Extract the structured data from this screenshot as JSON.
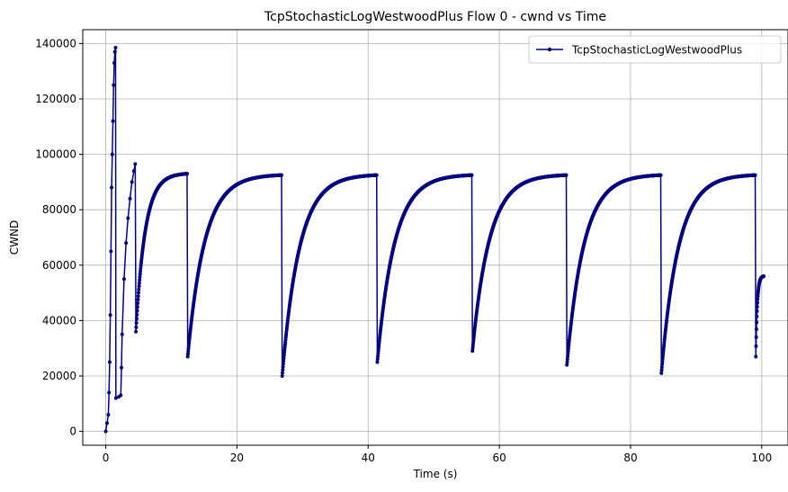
{
  "chart_data": {
    "type": "line",
    "title": "TcpStochasticLogWestwoodPlus Flow 0 - cwnd vs Time",
    "xlabel": "Time (s)",
    "ylabel": "CWND",
    "xlim": [
      -3.5,
      104
    ],
    "ylim": [
      -5000,
      145000
    ],
    "xticks": [
      0,
      20,
      40,
      60,
      80,
      100
    ],
    "yticks": [
      0,
      20000,
      40000,
      60000,
      80000,
      100000,
      120000,
      140000
    ],
    "grid": true,
    "legend": {
      "position": "top-right",
      "entries": [
        "TcpStochasticLogWestwoodPlus"
      ]
    },
    "colors": {
      "series": "#000080",
      "grid": "#b0b0b0"
    },
    "series": [
      {
        "name": "TcpStochasticLogWestwoodPlus",
        "startup_points": [
          [
            0.0,
            0
          ],
          [
            0.2,
            3000
          ],
          [
            0.4,
            6000
          ],
          [
            0.5,
            14000
          ],
          [
            0.6,
            25000
          ],
          [
            0.7,
            42000
          ],
          [
            0.8,
            65000
          ],
          [
            0.9,
            88000
          ],
          [
            1.0,
            100000
          ],
          [
            1.1,
            112000
          ],
          [
            1.2,
            125000
          ],
          [
            1.3,
            133000
          ],
          [
            1.4,
            137000
          ],
          [
            1.5,
            138500
          ],
          [
            1.55,
            12000
          ],
          [
            2.0,
            12500
          ],
          [
            2.3,
            13000
          ],
          [
            2.4,
            23000
          ],
          [
            2.5,
            35000
          ],
          [
            2.8,
            55000
          ],
          [
            3.1,
            68000
          ],
          [
            3.4,
            77000
          ],
          [
            3.7,
            84000
          ],
          [
            4.0,
            90000
          ],
          [
            4.3,
            94000
          ],
          [
            4.5,
            96500
          ]
        ],
        "cycles": [
          {
            "start": 4.6,
            "end": 12.4,
            "low": 36000,
            "high": 93000
          },
          {
            "start": 12.5,
            "end": 26.8,
            "low": 27000,
            "high": 92500
          },
          {
            "start": 26.9,
            "end": 41.3,
            "low": 20000,
            "high": 92500
          },
          {
            "start": 41.4,
            "end": 55.8,
            "low": 25000,
            "high": 92500
          },
          {
            "start": 55.9,
            "end": 70.2,
            "low": 29000,
            "high": 92500
          },
          {
            "start": 70.3,
            "end": 84.6,
            "low": 24000,
            "high": 92500
          },
          {
            "start": 84.7,
            "end": 99.0,
            "low": 21000,
            "high": 92500
          },
          {
            "start": 99.1,
            "end": 100.3,
            "low": 27000,
            "high": 56000
          }
        ]
      }
    ]
  }
}
